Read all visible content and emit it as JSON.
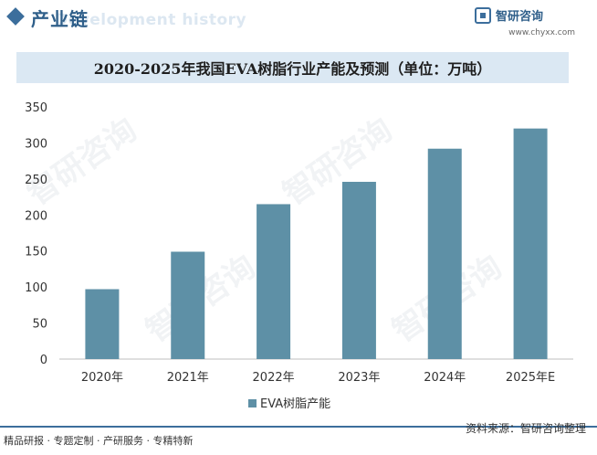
{
  "header": {
    "section_title": "产业链",
    "ghost_subtitle": "Development history",
    "logo_name": "智研咨询",
    "logo_url": "www.chyxx.com"
  },
  "watermark_text": "智研咨询",
  "colors": {
    "bar": "#5e90a6",
    "accent": "#3c6e9c",
    "title_band": "#dbe8f3"
  },
  "chart_data": {
    "type": "bar",
    "title": "2020-2025年我国EVA树脂行业产能及预测（单位：万吨）",
    "categories": [
      "2020年",
      "2021年",
      "2022年",
      "2023年",
      "2024年",
      "2025年E"
    ],
    "series": [
      {
        "name": "EVA树脂产能",
        "values": [
          97,
          149,
          215,
          246,
          292,
          320
        ]
      }
    ],
    "ylim": [
      0,
      350
    ],
    "yticks": [
      0,
      50,
      100,
      150,
      200,
      250,
      300,
      350
    ],
    "xlabel": "",
    "ylabel": "",
    "grid": false,
    "legend_position": "bottom"
  },
  "footer": {
    "left": "精品研报 · 专题定制 · 产研服务 · 专精特新",
    "source": "资料来源：智研咨询整理"
  }
}
